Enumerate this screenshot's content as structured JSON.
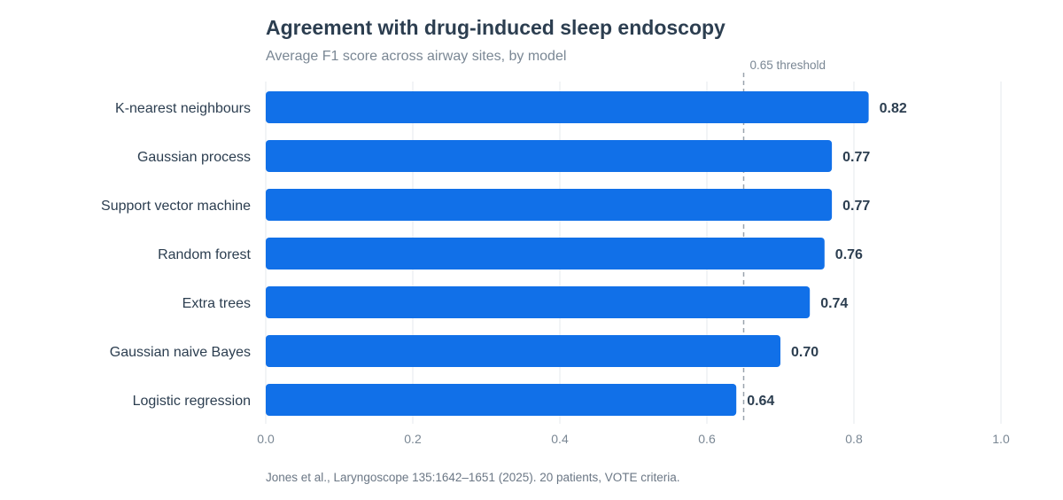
{
  "chart_data": {
    "type": "bar",
    "orientation": "horizontal",
    "title": "Agreement with drug-induced sleep endoscopy",
    "subtitle": "Average F1 score across airway sites, by model",
    "categories": [
      "K-nearest neighbours",
      "Gaussian process",
      "Support vector machine",
      "Random forest",
      "Extra trees",
      "Gaussian naive Bayes",
      "Logistic regression"
    ],
    "values": [
      0.82,
      0.77,
      0.77,
      0.76,
      0.74,
      0.7,
      0.64
    ],
    "value_labels": [
      "0.82",
      "0.77",
      "0.77",
      "0.76",
      "0.74",
      "0.70",
      "0.64"
    ],
    "xlim": [
      0,
      1.0
    ],
    "x_ticks": [
      0,
      0.2,
      0.4,
      0.6,
      0.8,
      1.0
    ],
    "x_tick_labels": [
      "0.0",
      "0.2",
      "0.4",
      "0.6",
      "0.8",
      "1.0"
    ],
    "grid": "vertical",
    "bar_color": "#1170e8",
    "reference_line": {
      "value": 0.65,
      "label": "0.65 threshold"
    },
    "source": "Jones et al., Laryngoscope 135:1642–1651 (2025). 20 patients, VOTE criteria."
  }
}
